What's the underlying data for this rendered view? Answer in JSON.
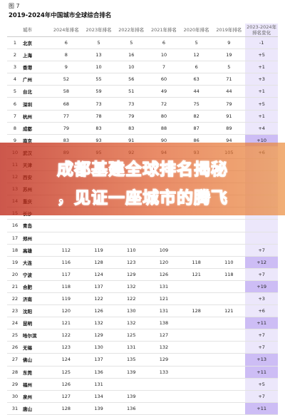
{
  "figure": {
    "label": "图 7",
    "title": "2019-2024年中国城市全球综合排名"
  },
  "headers": {
    "rank": "",
    "city": "城市",
    "y2024": "2024年排名",
    "y2023": "2023年排名",
    "y2022": "2022年排名",
    "y2021": "2021年排名",
    "y2020": "2020年排名",
    "y2019": "2019年排名",
    "change_line1": "2023-2024年",
    "change_line2": "排名变化"
  },
  "rows": [
    {
      "rank": "1",
      "city": "北京",
      "y2024": "6",
      "y2023": "5",
      "y2022": "5",
      "y2021": "6",
      "y2020": "5",
      "y2019": "9",
      "change": "-1",
      "hi": false
    },
    {
      "rank": "2",
      "city": "上海",
      "y2024": "8",
      "y2023": "13",
      "y2022": "16",
      "y2021": "10",
      "y2020": "12",
      "y2019": "19",
      "change": "+5",
      "hi": false
    },
    {
      "rank": "3",
      "city": "香港",
      "y2024": "9",
      "y2023": "10",
      "y2022": "10",
      "y2021": "7",
      "y2020": "6",
      "y2019": "5",
      "change": "+1",
      "hi": false
    },
    {
      "rank": "4",
      "city": "广州",
      "y2024": "52",
      "y2023": "55",
      "y2022": "56",
      "y2021": "60",
      "y2020": "63",
      "y2019": "71",
      "change": "+3",
      "hi": false
    },
    {
      "rank": "5",
      "city": "台北",
      "y2024": "58",
      "y2023": "59",
      "y2022": "51",
      "y2021": "49",
      "y2020": "44",
      "y2019": "44",
      "change": "+1",
      "hi": false
    },
    {
      "rank": "6",
      "city": "深圳",
      "y2024": "68",
      "y2023": "73",
      "y2022": "73",
      "y2021": "72",
      "y2020": "75",
      "y2019": "79",
      "change": "+5",
      "hi": false
    },
    {
      "rank": "7",
      "city": "杭州",
      "y2024": "77",
      "y2023": "78",
      "y2022": "79",
      "y2021": "80",
      "y2020": "82",
      "y2019": "91",
      "change": "+1",
      "hi": false
    },
    {
      "rank": "8",
      "city": "成都",
      "y2024": "79",
      "y2023": "83",
      "y2022": "83",
      "y2021": "88",
      "y2020": "87",
      "y2019": "89",
      "change": "+4",
      "hi": false
    },
    {
      "rank": "9",
      "city": "南京",
      "y2024": "83",
      "y2023": "93",
      "y2022": "91",
      "y2021": "90",
      "y2020": "86",
      "y2019": "94",
      "change": "+10",
      "hi": true
    },
    {
      "rank": "10",
      "city": "武汉",
      "y2024": "89",
      "y2023": "95",
      "y2022": "92",
      "y2021": "94",
      "y2020": "93",
      "y2019": "105",
      "change": "+6",
      "hi": false
    },
    {
      "rank": "11",
      "city": "天津",
      "y2024": "",
      "y2023": "",
      "y2022": "",
      "y2021": "",
      "y2020": "",
      "y2019": "",
      "change": "",
      "hi": false
    },
    {
      "rank": "12",
      "city": "西安",
      "y2024": "",
      "y2023": "",
      "y2022": "",
      "y2021": "",
      "y2020": "",
      "y2019": "",
      "change": "",
      "hi": false
    },
    {
      "rank": "13",
      "city": "苏州",
      "y2024": "",
      "y2023": "",
      "y2022": "",
      "y2021": "",
      "y2020": "",
      "y2019": "",
      "change": "",
      "hi": false
    },
    {
      "rank": "14",
      "city": "重庆",
      "y2024": "",
      "y2023": "",
      "y2022": "",
      "y2021": "",
      "y2020": "",
      "y2019": "",
      "change": "",
      "hi": false
    },
    {
      "rank": "15",
      "city": "长沙",
      "y2024": "",
      "y2023": "",
      "y2022": "",
      "y2021": "",
      "y2020": "",
      "y2019": "",
      "change": "",
      "hi": false
    },
    {
      "rank": "16",
      "city": "青岛",
      "y2024": "",
      "y2023": "",
      "y2022": "",
      "y2021": "",
      "y2020": "",
      "y2019": "",
      "change": "",
      "hi": false
    },
    {
      "rank": "17",
      "city": "郑州",
      "y2024": "",
      "y2023": "",
      "y2022": "",
      "y2021": "",
      "y2020": "",
      "y2019": "",
      "change": "",
      "hi": false
    },
    {
      "rank": "18",
      "city": "高雄",
      "y2024": "112",
      "y2023": "119",
      "y2022": "110",
      "y2021": "109",
      "y2020": "",
      "y2019": "",
      "change": "+7",
      "hi": false
    },
    {
      "rank": "19",
      "city": "大连",
      "y2024": "116",
      "y2023": "128",
      "y2022": "123",
      "y2021": "120",
      "y2020": "118",
      "y2019": "110",
      "change": "+12",
      "hi": true
    },
    {
      "rank": "20",
      "city": "宁波",
      "y2024": "117",
      "y2023": "124",
      "y2022": "129",
      "y2021": "126",
      "y2020": "121",
      "y2019": "118",
      "change": "+7",
      "hi": false
    },
    {
      "rank": "21",
      "city": "合肥",
      "y2024": "118",
      "y2023": "137",
      "y2022": "132",
      "y2021": "131",
      "y2020": "",
      "y2019": "",
      "change": "+19",
      "hi": true
    },
    {
      "rank": "22",
      "city": "济南",
      "y2024": "119",
      "y2023": "122",
      "y2022": "122",
      "y2021": "121",
      "y2020": "",
      "y2019": "",
      "change": "+3",
      "hi": false
    },
    {
      "rank": "23",
      "city": "沈阳",
      "y2024": "120",
      "y2023": "126",
      "y2022": "130",
      "y2021": "131",
      "y2020": "128",
      "y2019": "121",
      "change": "+6",
      "hi": false
    },
    {
      "rank": "24",
      "city": "昆明",
      "y2024": "121",
      "y2023": "132",
      "y2022": "132",
      "y2021": "138",
      "y2020": "",
      "y2019": "",
      "change": "+11",
      "hi": true
    },
    {
      "rank": "25",
      "city": "哈尔滨",
      "y2024": "122",
      "y2023": "129",
      "y2022": "125",
      "y2021": "127",
      "y2020": "",
      "y2019": "",
      "change": "+7",
      "hi": false
    },
    {
      "rank": "26",
      "city": "无锡",
      "y2024": "123",
      "y2023": "130",
      "y2022": "131",
      "y2021": "132",
      "y2020": "",
      "y2019": "",
      "change": "+7",
      "hi": false
    },
    {
      "rank": "27",
      "city": "佛山",
      "y2024": "124",
      "y2023": "137",
      "y2022": "135",
      "y2021": "129",
      "y2020": "",
      "y2019": "",
      "change": "+13",
      "hi": true
    },
    {
      "rank": "28",
      "city": "东莞",
      "y2024": "125",
      "y2023": "136",
      "y2022": "139",
      "y2021": "133",
      "y2020": "",
      "y2019": "",
      "change": "+11",
      "hi": true
    },
    {
      "rank": "29",
      "city": "福州",
      "y2024": "126",
      "y2023": "131",
      "y2022": "",
      "y2021": "",
      "y2020": "",
      "y2019": "",
      "change": "+5",
      "hi": false
    },
    {
      "rank": "30",
      "city": "泉州",
      "y2024": "127",
      "y2023": "134",
      "y2022": "139",
      "y2021": "",
      "y2020": "",
      "y2019": "",
      "change": "+7",
      "hi": false
    },
    {
      "rank": "31",
      "city": "唐山",
      "y2024": "128",
      "y2023": "139",
      "y2022": "136",
      "y2021": "",
      "y2020": "",
      "y2019": "",
      "change": "+11",
      "hi": true
    }
  ],
  "banner": {
    "line1": "成都基建全球排名揭秘",
    "line2": "，见证一座城市的腾飞"
  },
  "colors": {
    "change_col": "#ece7fb",
    "change_hi": "#cdbdf5",
    "banner_red": "#c2271a"
  }
}
